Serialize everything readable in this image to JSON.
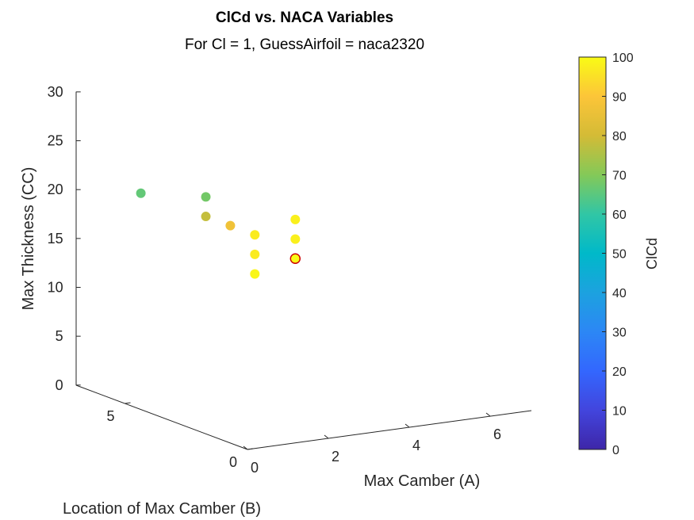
{
  "chart_data": {
    "type": "scatter",
    "title": "ClCd vs. NACA Variables",
    "subtitle": "For Cl = 1, GuessAirfoil = naca2320",
    "xlabel": "Max Camber (A)",
    "ylabel": "Location of Max Camber (B)",
    "zlabel": "Max Thickness (CC)",
    "colorbar_label": "ClCd",
    "xlim": [
      0,
      7
    ],
    "ylim": [
      0,
      7
    ],
    "zlim": [
      0,
      30
    ],
    "xticks": [
      0,
      2,
      4,
      6
    ],
    "yticks": [
      0,
      5
    ],
    "zticks": [
      0,
      5,
      10,
      15,
      20,
      25,
      30
    ],
    "colorbar_range": [
      0,
      100
    ],
    "colorbar_ticks": [
      0,
      10,
      20,
      30,
      40,
      50,
      60,
      70,
      80,
      90,
      100
    ],
    "colormap": "parula",
    "grid": false,
    "points": [
      {
        "x": 1,
        "y": 6,
        "z": 20,
        "c": 66
      },
      {
        "x": 2,
        "y": 5,
        "z": 20,
        "c": 68
      },
      {
        "x": 2,
        "y": 5,
        "z": 18,
        "c": 78
      },
      {
        "x": 2,
        "y": 4,
        "z": 18,
        "c": 87
      },
      {
        "x": 2,
        "y": 3,
        "z": 18,
        "c": 97
      },
      {
        "x": 3,
        "y": 3,
        "z": 19,
        "c": 98
      },
      {
        "x": 2,
        "y": 3,
        "z": 16,
        "c": 97
      },
      {
        "x": 3,
        "y": 3,
        "z": 17,
        "c": 98
      },
      {
        "x": 2,
        "y": 3,
        "z": 14,
        "c": 99
      },
      {
        "x": 3,
        "y": 3,
        "z": 15,
        "c": 100,
        "highlight": "#cc0000"
      }
    ]
  }
}
